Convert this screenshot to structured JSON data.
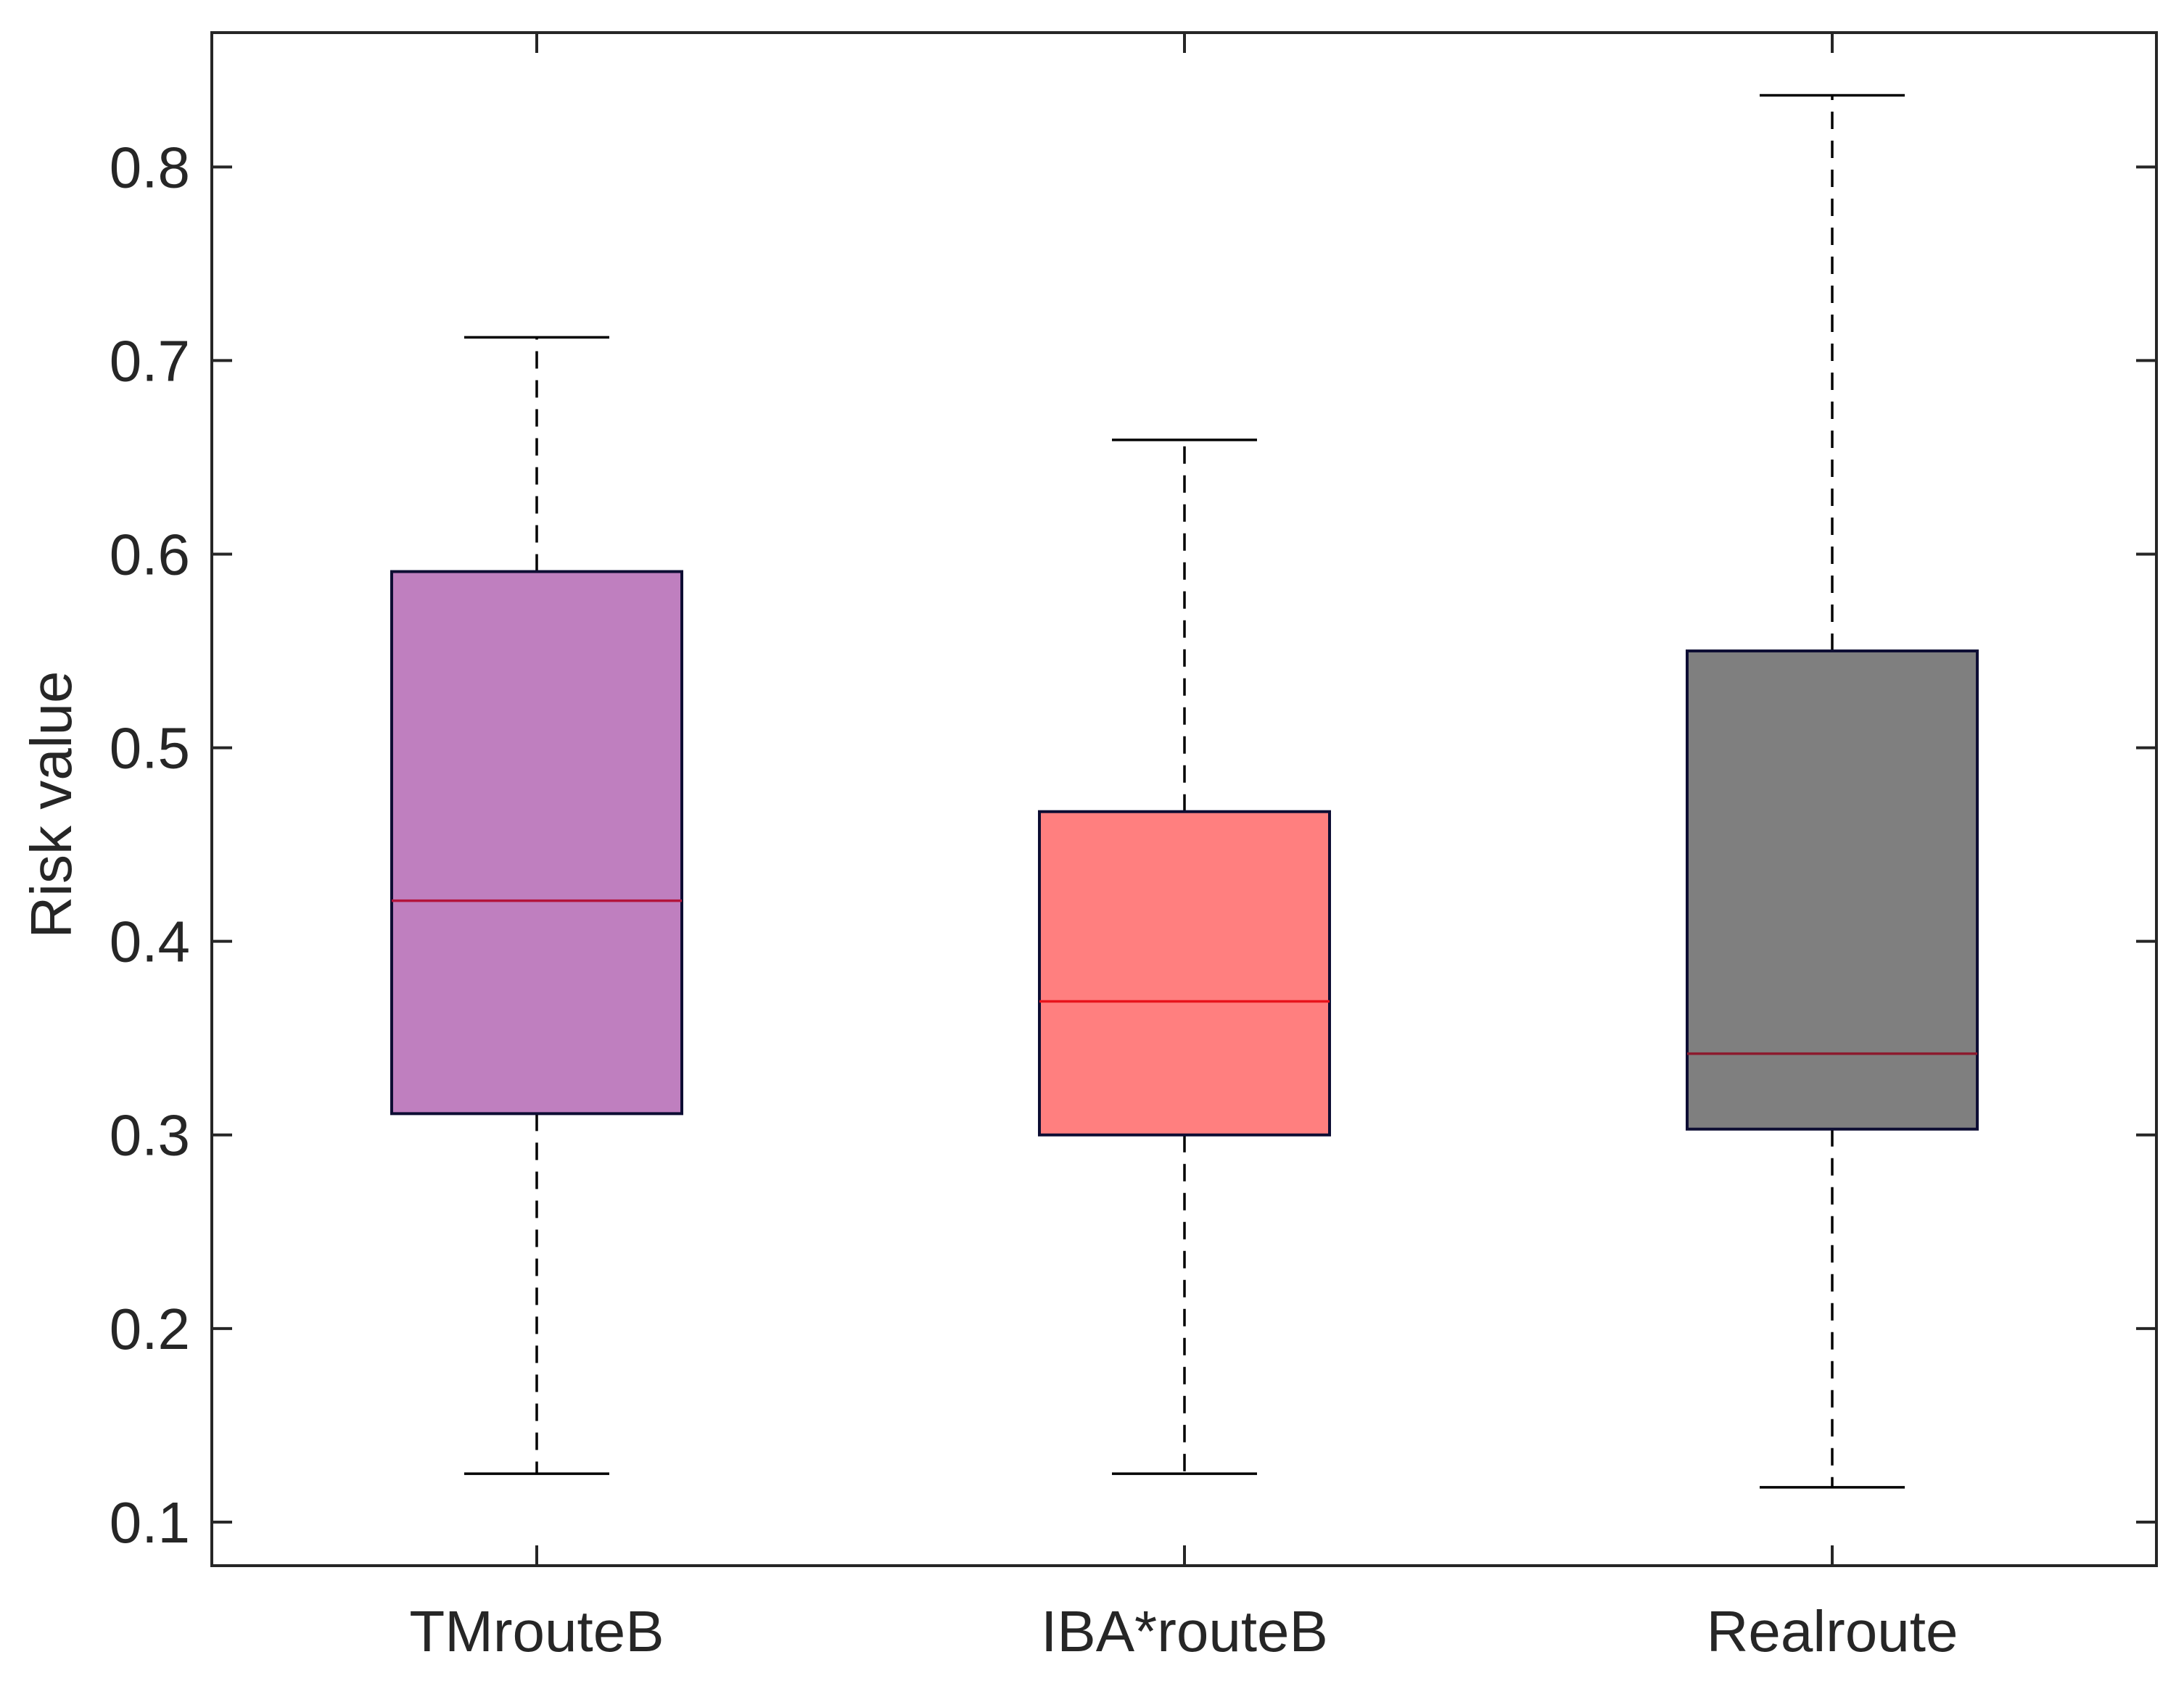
{
  "chart_data": {
    "type": "box",
    "title": "",
    "xlabel": "",
    "ylabel": "Risk value",
    "ylim": [
      0.0775,
      0.8694
    ],
    "yticks": [
      0.1,
      0.2,
      0.3,
      0.4,
      0.5,
      0.6,
      0.7,
      0.8
    ],
    "ytick_labels": [
      "0.1",
      "0.2",
      "0.3",
      "0.4",
      "0.5",
      "0.6",
      "0.7",
      "0.8"
    ],
    "grid": false,
    "categories": [
      "TMrouteB",
      "IBA*routeB",
      "Realroute"
    ],
    "boxes": [
      {
        "name": "TMrouteB",
        "whisker_low": 0.125,
        "q1": 0.311,
        "median": 0.421,
        "q3": 0.591,
        "whisker_high": 0.712,
        "fill": "#bf7fbf",
        "median_color": "#b3143c"
      },
      {
        "name": "IBA*routeB",
        "whisker_low": 0.125,
        "q1": 0.3,
        "median": 0.369,
        "q3": 0.467,
        "whisker_high": 0.659,
        "fill": "#ff7f7f",
        "median_color": "#e8141c"
      },
      {
        "name": "Realroute",
        "whisker_low": 0.118,
        "q1": 0.303,
        "median": 0.342,
        "q3": 0.55,
        "whisker_high": 0.837,
        "fill": "#7f7f7f",
        "median_color": "#8c1a2e"
      }
    ],
    "colors": {
      "axis": "#262626",
      "box_edge": "#0d0d33",
      "whisker": "#000000"
    }
  }
}
